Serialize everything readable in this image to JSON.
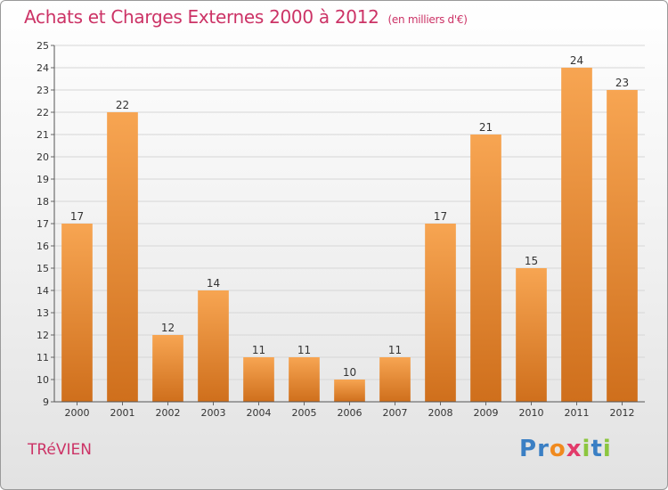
{
  "title": "Achats et Charges Externes 2000 à 2012",
  "subtitle": "(en milliers d'€)",
  "commune": "TRéVIEN",
  "brand": {
    "letters": [
      "P",
      "r",
      "o",
      "x",
      "i",
      "t",
      "i"
    ],
    "colors": [
      "#3a7fc4",
      "#3a7fc4",
      "#f08a1e",
      "#e23b6a",
      "#8cc63f",
      "#3a7fc4",
      "#8cc63f"
    ]
  },
  "chart_data": {
    "type": "bar",
    "title": "Achats et Charges Externes 2000 à 2012",
    "subtitle": "(en milliers d'€)",
    "categories": [
      "2000",
      "2001",
      "2002",
      "2003",
      "2004",
      "2005",
      "2006",
      "2007",
      "2008",
      "2009",
      "2010",
      "2011",
      "2012"
    ],
    "values": [
      17,
      22,
      12,
      14,
      11,
      11,
      10,
      11,
      17,
      21,
      15,
      24,
      23
    ],
    "ylim": [
      9,
      25
    ],
    "yticks": [
      9,
      10,
      11,
      12,
      13,
      14,
      15,
      16,
      17,
      18,
      19,
      20,
      21,
      22,
      23,
      24,
      25
    ],
    "ytick_labels": [
      "9",
      "10",
      "11",
      "12",
      "13",
      "14",
      "15",
      "16",
      "17",
      "18",
      "19",
      "20",
      "21",
      "22",
      "23",
      "24",
      "25"
    ],
    "grid": true,
    "bar_color": "#f0923a"
  }
}
